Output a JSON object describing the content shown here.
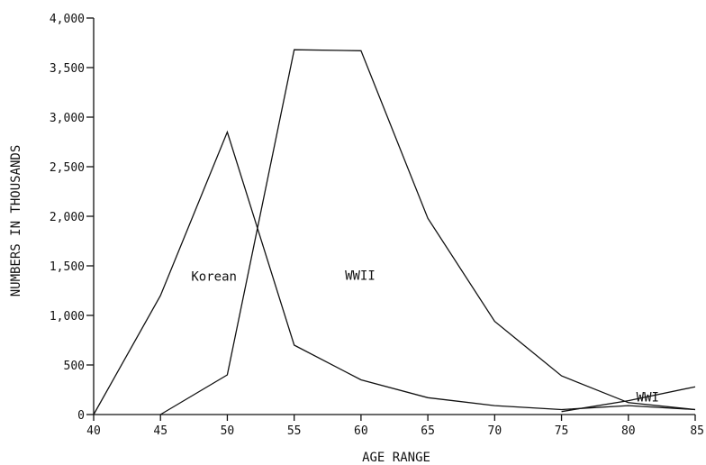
{
  "chart_data": {
    "type": "line",
    "xlabel": "AGE RANGE",
    "ylabel": "NUMBERS IN THOUSANDS",
    "xlim": [
      40,
      85
    ],
    "ylim": [
      0,
      4000
    ],
    "x_ticks": [
      40,
      45,
      50,
      55,
      60,
      65,
      70,
      75,
      80,
      85
    ],
    "x_tick_labels": [
      "40",
      "45",
      "50",
      "55",
      "60",
      "65",
      "70",
      "75",
      "80",
      "85"
    ],
    "y_ticks": [
      0,
      500,
      1000,
      1500,
      2000,
      2500,
      3000,
      3500,
      4000
    ],
    "y_tick_labels": [
      "0",
      "500",
      "1,000",
      "1,500",
      "2,000",
      "2,500",
      "3,000",
      "3,500",
      "4,000"
    ],
    "grid": false,
    "series": [
      {
        "name": "Korean",
        "x": [
          40,
          45,
          50,
          55,
          60,
          65,
          70,
          75,
          80,
          85
        ],
        "values": [
          0,
          1200,
          2850,
          700,
          350,
          170,
          90,
          50,
          90,
          50
        ]
      },
      {
        "name": "WWII",
        "x": [
          45,
          50,
          55,
          60,
          65,
          70,
          75,
          80,
          85
        ],
        "values": [
          0,
          400,
          3680,
          3670,
          1980,
          940,
          390,
          120,
          50
        ]
      },
      {
        "name": "WWI",
        "x": [
          75,
          80,
          85
        ],
        "values": [
          30,
          140,
          280
        ]
      }
    ]
  }
}
